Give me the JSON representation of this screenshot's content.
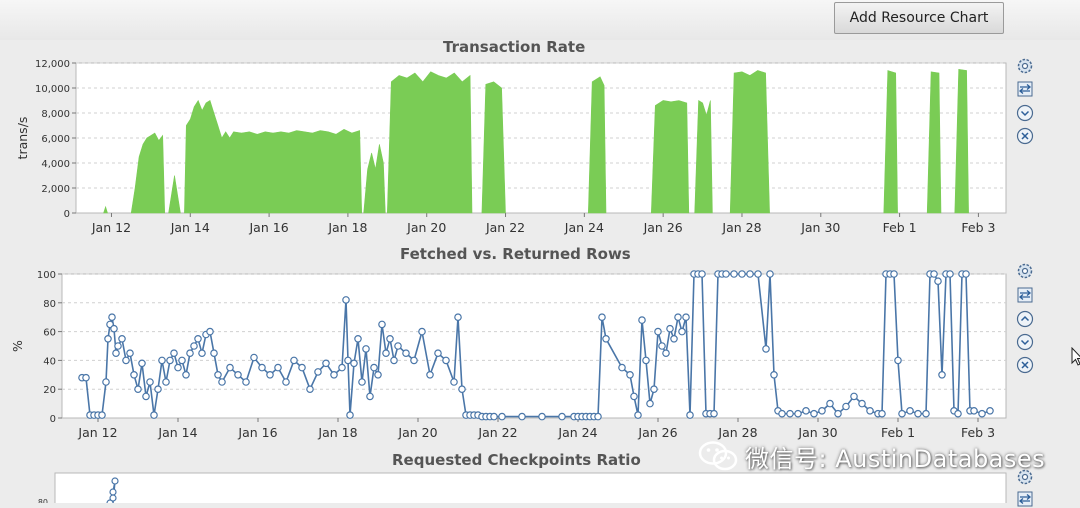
{
  "toolbar": {
    "add_resource_chart": "Add Resource Chart"
  },
  "colors": {
    "area_fill": "#7acc55",
    "line": "#4a76a8",
    "marker_fill": "#ffffff",
    "grid": "#d0d0d0"
  },
  "icons": [
    "gear-icon",
    "swap-icon",
    "chevron-up-icon",
    "chevron-down-icon",
    "close-icon"
  ],
  "watermark": "微信号: AustinDatabases",
  "chart_data": [
    {
      "type": "area",
      "title": "Transaction Rate",
      "ylabel": "trans/s",
      "xlabel": "",
      "x_ticks": [
        "Jan 12",
        "Jan 14",
        "Jan 16",
        "Jan 18",
        "Jan 20",
        "Jan 22",
        "Jan 24",
        "Jan 26",
        "Jan 28",
        "Jan 30",
        "Feb 1",
        "Feb 3"
      ],
      "x_tick_positions": [
        11.9,
        13.9,
        15.9,
        17.9,
        19.9,
        21.9,
        23.9,
        25.9,
        27.9,
        29.9,
        31.9,
        33.9
      ],
      "xlim": [
        11.0,
        34.6
      ],
      "ylim": [
        0,
        12000
      ],
      "y_ticks": [
        0,
        2000,
        4000,
        6000,
        8000,
        10000,
        12000
      ],
      "y_tick_labels": [
        "0",
        "2,000",
        "4,000",
        "6,000",
        "8,000",
        "10,000",
        "12,000"
      ],
      "grid": true,
      "segments": [
        {
          "x": [
            11.7,
            11.75,
            11.8
          ],
          "y": [
            0,
            500,
            0
          ]
        },
        {
          "x": [
            12.4,
            12.5,
            12.6,
            12.7,
            12.8,
            12.9,
            13.0,
            13.1,
            13.2,
            13.25
          ],
          "y": [
            0,
            2000,
            4500,
            5500,
            6000,
            6200,
            6400,
            5800,
            6200,
            0
          ]
        },
        {
          "x": [
            13.35,
            13.5,
            13.65
          ],
          "y": [
            0,
            3000,
            0
          ]
        },
        {
          "x": [
            13.75,
            13.8,
            13.9,
            14.0,
            14.1,
            14.2,
            14.3,
            14.4,
            14.5,
            14.6,
            14.7,
            14.8,
            14.9,
            15.0,
            15.2,
            15.4,
            15.6,
            15.8,
            16.0,
            16.2,
            16.4,
            16.6,
            16.8,
            17.0,
            17.2,
            17.4,
            17.6,
            17.8,
            18.0,
            18.2,
            18.25
          ],
          "y": [
            0,
            7000,
            7500,
            8500,
            9000,
            8200,
            8800,
            9000,
            8000,
            7000,
            6000,
            6500,
            6000,
            6500,
            6400,
            6500,
            6300,
            6500,
            6400,
            6500,
            6400,
            6600,
            6500,
            6400,
            6600,
            6500,
            6300,
            6700,
            6400,
            6600,
            0
          ]
        },
        {
          "x": [
            18.3,
            18.4,
            18.5,
            18.6,
            18.7,
            18.8,
            18.85
          ],
          "y": [
            0,
            3500,
            4800,
            3500,
            5500,
            4000,
            0
          ]
        },
        {
          "x": [
            18.9,
            19.0,
            19.2,
            19.4,
            19.6,
            19.8,
            20.0,
            20.2,
            20.4,
            20.6,
            20.8,
            21.0,
            21.05
          ],
          "y": [
            0,
            10500,
            11000,
            10800,
            11200,
            10500,
            11300,
            11000,
            10800,
            11200,
            10500,
            11000,
            0
          ]
        },
        {
          "x": [
            21.3,
            21.4,
            21.6,
            21.8,
            21.9
          ],
          "y": [
            0,
            10300,
            10500,
            10000,
            0
          ]
        },
        {
          "x": [
            24.0,
            24.1,
            24.3,
            24.4,
            24.45
          ],
          "y": [
            0,
            10500,
            10900,
            10200,
            0
          ]
        },
        {
          "x": [
            25.6,
            25.7,
            25.9,
            26.1,
            26.3,
            26.5,
            26.55
          ],
          "y": [
            0,
            8600,
            9000,
            8900,
            9000,
            8800,
            0
          ]
        },
        {
          "x": [
            26.7,
            26.8,
            26.9,
            27.0,
            27.1,
            27.15
          ],
          "y": [
            0,
            9000,
            8800,
            7800,
            9000,
            0
          ]
        },
        {
          "x": [
            27.6,
            27.7,
            27.9,
            28.1,
            28.3,
            28.5,
            28.6
          ],
          "y": [
            0,
            11200,
            11300,
            11000,
            11400,
            11200,
            0
          ]
        },
        {
          "x": [
            31.5,
            31.6,
            31.8,
            31.85
          ],
          "y": [
            0,
            11400,
            11200,
            0
          ]
        },
        {
          "x": [
            32.6,
            32.7,
            32.9,
            32.95
          ],
          "y": [
            0,
            11300,
            11200,
            0
          ]
        },
        {
          "x": [
            33.3,
            33.4,
            33.6,
            33.65
          ],
          "y": [
            0,
            11500,
            11400,
            0
          ]
        }
      ]
    },
    {
      "type": "line",
      "title": "Fetched vs. Returned Rows",
      "ylabel": "%",
      "xlabel": "",
      "x_ticks": [
        "Jan 12",
        "Jan 14",
        "Jan 16",
        "Jan 18",
        "Jan 20",
        "Jan 22",
        "Jan 24",
        "Jan 26",
        "Jan 28",
        "Jan 30",
        "Feb 1",
        "Feb 3"
      ],
      "x_tick_positions": [
        11.9,
        13.9,
        15.9,
        17.9,
        19.9,
        21.9,
        23.9,
        25.9,
        27.9,
        29.9,
        31.9,
        33.9
      ],
      "xlim": [
        11.0,
        34.6
      ],
      "ylim": [
        0,
        100
      ],
      "y_ticks": [
        0,
        20,
        40,
        60,
        80,
        100
      ],
      "grid": true,
      "markers": "circle",
      "x": [
        11.5,
        11.6,
        11.7,
        11.8,
        11.9,
        12.0,
        12.1,
        12.15,
        12.2,
        12.25,
        12.3,
        12.35,
        12.4,
        12.5,
        12.6,
        12.7,
        12.8,
        12.9,
        13.0,
        13.1,
        13.2,
        13.3,
        13.4,
        13.5,
        13.6,
        13.7,
        13.8,
        13.9,
        14.0,
        14.1,
        14.2,
        14.3,
        14.4,
        14.5,
        14.6,
        14.7,
        14.8,
        14.9,
        15.0,
        15.2,
        15.4,
        15.6,
        15.8,
        16.0,
        16.2,
        16.4,
        16.6,
        16.8,
        17.0,
        17.2,
        17.4,
        17.6,
        17.8,
        18.0,
        18.1,
        18.15,
        18.2,
        18.3,
        18.4,
        18.5,
        18.6,
        18.7,
        18.8,
        18.9,
        19.0,
        19.1,
        19.2,
        19.3,
        19.4,
        19.6,
        19.8,
        20.0,
        20.2,
        20.4,
        20.6,
        20.8,
        20.9,
        21.0,
        21.1,
        21.2,
        21.3,
        21.4,
        21.5,
        21.6,
        21.7,
        21.8,
        22.0,
        22.5,
        23.0,
        23.5,
        23.8,
        23.9,
        24.0,
        24.1,
        24.2,
        24.3,
        24.4,
        24.5,
        24.6,
        25.0,
        25.2,
        25.3,
        25.4,
        25.5,
        25.6,
        25.7,
        25.8,
        25.9,
        26.0,
        26.1,
        26.2,
        26.3,
        26.4,
        26.5,
        26.6,
        26.7,
        26.8,
        26.9,
        27.0,
        27.1,
        27.2,
        27.3,
        27.4,
        27.5,
        27.6,
        27.8,
        28.0,
        28.2,
        28.4,
        28.6,
        28.7,
        28.8,
        28.9,
        29.0,
        29.2,
        29.4,
        29.6,
        29.8,
        30.0,
        30.2,
        30.4,
        30.6,
        30.8,
        31.0,
        31.2,
        31.4,
        31.5,
        31.6,
        31.7,
        31.8,
        31.9,
        32.0,
        32.2,
        32.4,
        32.6,
        32.7,
        32.8,
        32.9,
        33.0,
        33.1,
        33.2,
        33.3,
        33.4,
        33.5,
        33.6,
        33.7,
        33.8,
        34.0,
        34.2
      ],
      "y": [
        28,
        28,
        2,
        2,
        2,
        2,
        25,
        55,
        65,
        70,
        62,
        45,
        50,
        55,
        40,
        45,
        30,
        20,
        38,
        15,
        25,
        2,
        20,
        40,
        25,
        40,
        45,
        35,
        40,
        30,
        45,
        50,
        55,
        45,
        58,
        60,
        45,
        30,
        25,
        35,
        30,
        25,
        42,
        35,
        30,
        35,
        25,
        40,
        35,
        20,
        32,
        38,
        30,
        35,
        82,
        40,
        2,
        38,
        55,
        25,
        48,
        15,
        35,
        30,
        65,
        45,
        55,
        40,
        50,
        45,
        40,
        60,
        30,
        45,
        40,
        25,
        70,
        20,
        2,
        2,
        2,
        2,
        1,
        1,
        1,
        1,
        1,
        1,
        1,
        1,
        1,
        1,
        1,
        1,
        1,
        1,
        1,
        70,
        55,
        35,
        30,
        15,
        2,
        68,
        40,
        10,
        20,
        60,
        50,
        45,
        62,
        55,
        70,
        60,
        70,
        2,
        100,
        100,
        100,
        3,
        3,
        3,
        100,
        100,
        100,
        100,
        100,
        100,
        100,
        48,
        100,
        30,
        5,
        3,
        3,
        3,
        5,
        3,
        5,
        10,
        3,
        8,
        15,
        10,
        5,
        3,
        3,
        100,
        100,
        100,
        40,
        3,
        5,
        3,
        3,
        100,
        100,
        95,
        30,
        100,
        100,
        5,
        3,
        100,
        100,
        5,
        5,
        3,
        5
      ],
      "series_name": ""
    },
    {
      "type": "line",
      "title": "Requested Checkpoints Ratio",
      "ylabel": "",
      "y_ticks_visible": [
        "80"
      ],
      "partial": true
    }
  ]
}
